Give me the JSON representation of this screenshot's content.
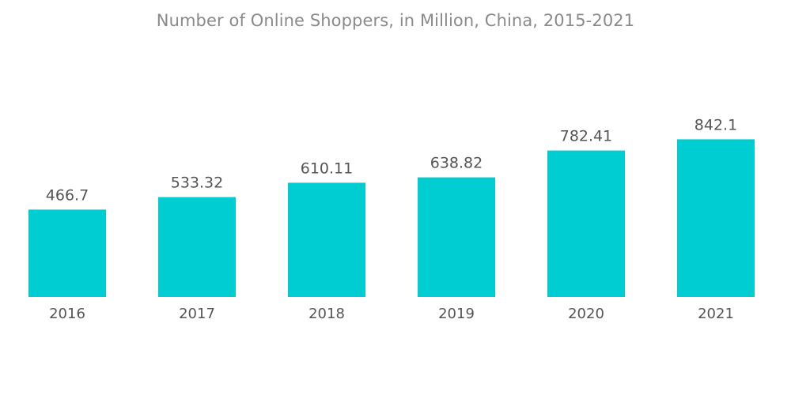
{
  "chart_data": {
    "type": "bar",
    "title": "Number of Online Shoppers, in Million, China, 2015-2021",
    "categories": [
      "2016",
      "2017",
      "2018",
      "2019",
      "2020",
      "2021"
    ],
    "values": [
      466.7,
      533.32,
      610.11,
      638.82,
      782.41,
      842.1
    ],
    "data_labels": [
      "466.7",
      "533.32",
      "610.11",
      "638.82",
      "782.41",
      "842.1"
    ],
    "bar_color": "#00cdd1",
    "xlabel": "",
    "ylabel": "",
    "grid": false,
    "legend": "none"
  }
}
